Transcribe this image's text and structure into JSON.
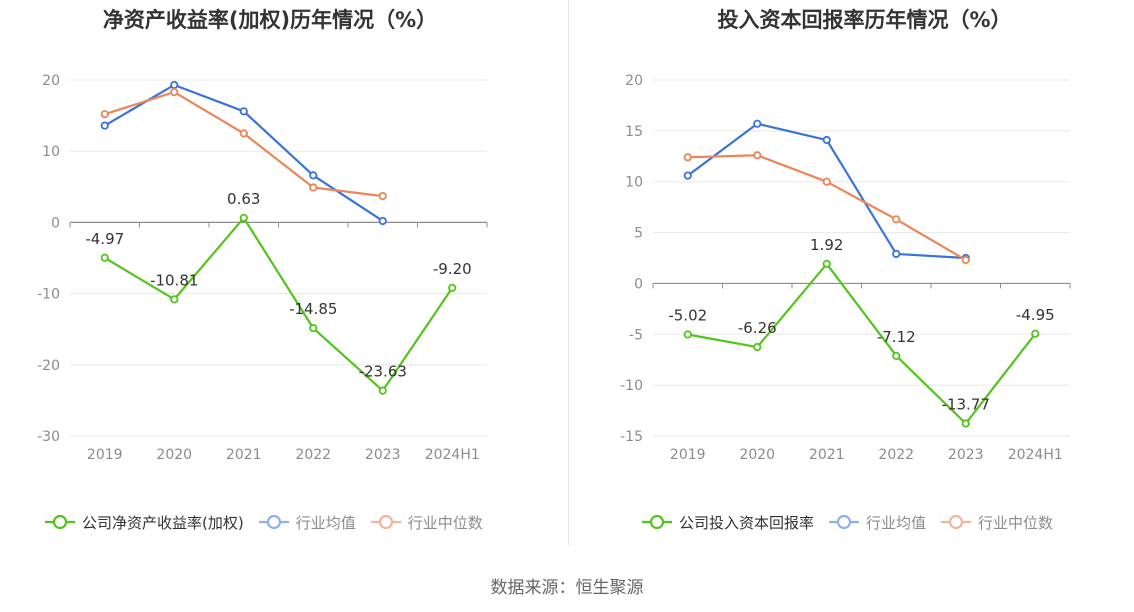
{
  "colors": {
    "company": "#52c41a",
    "avg": "#3a72d9",
    "median": "#ee8458",
    "avg_legend": "#8fb0ef",
    "median_legend": "#f4b39b",
    "grid": "#e8e8e8",
    "axis": "#8c8c8c",
    "tick_text": "#8c8c8c",
    "label_text": "#333333"
  },
  "source": "数据来源：恒生聚源",
  "chart_data": [
    {
      "type": "line",
      "title": "净资产收益率(加权)历年情况（%）",
      "categories": [
        "2019",
        "2020",
        "2021",
        "2022",
        "2023",
        "2024H1"
      ],
      "ylim": [
        -30,
        20
      ],
      "yticks": [
        "20",
        "10",
        "0",
        "-10",
        "-20",
        "-30"
      ],
      "grid": true,
      "legend_position": "bottom",
      "series": [
        {
          "name": "公司净资产收益率(加权)",
          "values": [
            -4.97,
            -10.81,
            0.63,
            -14.85,
            -23.63,
            -9.2
          ],
          "labels": [
            "-4.97",
            "-10.81",
            "0.63",
            "-14.85",
            "-23.63",
            "-9.20"
          ]
        },
        {
          "name": "行业均值",
          "values": [
            13.6,
            19.3,
            15.6,
            6.6,
            0.2,
            null
          ]
        },
        {
          "name": "行业中位数",
          "values": [
            15.2,
            18.3,
            12.5,
            4.9,
            3.7,
            null
          ]
        }
      ]
    },
    {
      "type": "line",
      "title": "投入资本回报率历年情况（%）",
      "categories": [
        "2019",
        "2020",
        "2021",
        "2022",
        "2023",
        "2024H1"
      ],
      "ylim": [
        -15,
        20
      ],
      "yticks": [
        "20",
        "15",
        "10",
        "5",
        "0",
        "-5",
        "-10",
        "-15"
      ],
      "grid": true,
      "legend_position": "bottom",
      "series": [
        {
          "name": "公司投入资本回报率",
          "values": [
            -5.02,
            -6.26,
            1.92,
            -7.12,
            -13.77,
            -4.95
          ],
          "labels": [
            "-5.02",
            "-6.26",
            "1.92",
            "-7.12",
            "-13.77",
            "-4.95"
          ]
        },
        {
          "name": "行业均值",
          "values": [
            10.6,
            15.7,
            14.1,
            2.9,
            2.5,
            null
          ]
        },
        {
          "name": "行业中位数",
          "values": [
            12.4,
            12.6,
            10.0,
            6.3,
            2.3,
            null
          ]
        }
      ]
    }
  ]
}
